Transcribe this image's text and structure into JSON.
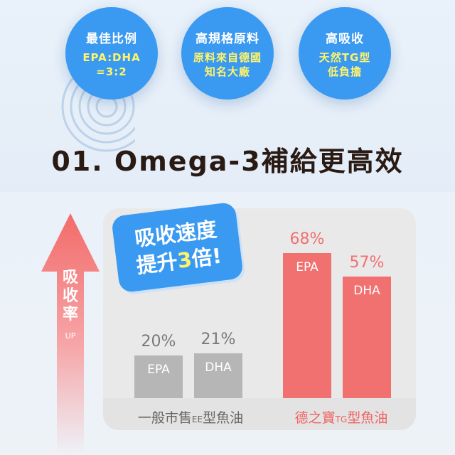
{
  "features": [
    {
      "title": "最佳比例",
      "lines": [
        "EPA:DHA",
        "=3:2"
      ]
    },
    {
      "title": "高規格原料",
      "lines": [
        "原料來自德國",
        "知名大廠"
      ]
    },
    {
      "title": "高吸收",
      "lines": [
        "天然TG型",
        "低負擔"
      ]
    }
  ],
  "heading": "01. Omega-3補給更高效",
  "arrow": {
    "label_lines": [
      "吸",
      "收",
      "率"
    ],
    "sub": "UP"
  },
  "badge": {
    "line1": "吸收速度",
    "line2_pre": "提升",
    "line2_highlight": "3",
    "line2_post": "倍!"
  },
  "colors": {
    "blue": "#3a9af1",
    "yellow": "#fff36a",
    "red": "#f07170",
    "grey_bar": "#b6b6b7"
  },
  "chart_data": {
    "type": "bar",
    "groups": [
      {
        "name_pre": "一般市售",
        "name_small": "EE",
        "name_post": "型魚油",
        "bars": [
          {
            "label": "EPA",
            "value": 20,
            "value_text": "20%"
          },
          {
            "label": "DHA",
            "value": 21,
            "value_text": "21%"
          }
        ]
      },
      {
        "name_pre": "德之寶",
        "name_small": "TG",
        "name_post": "型魚油",
        "bars": [
          {
            "label": "EPA",
            "value": 68,
            "value_text": "68%"
          },
          {
            "label": "DHA",
            "value": 57,
            "value_text": "57%"
          }
        ]
      }
    ]
  }
}
